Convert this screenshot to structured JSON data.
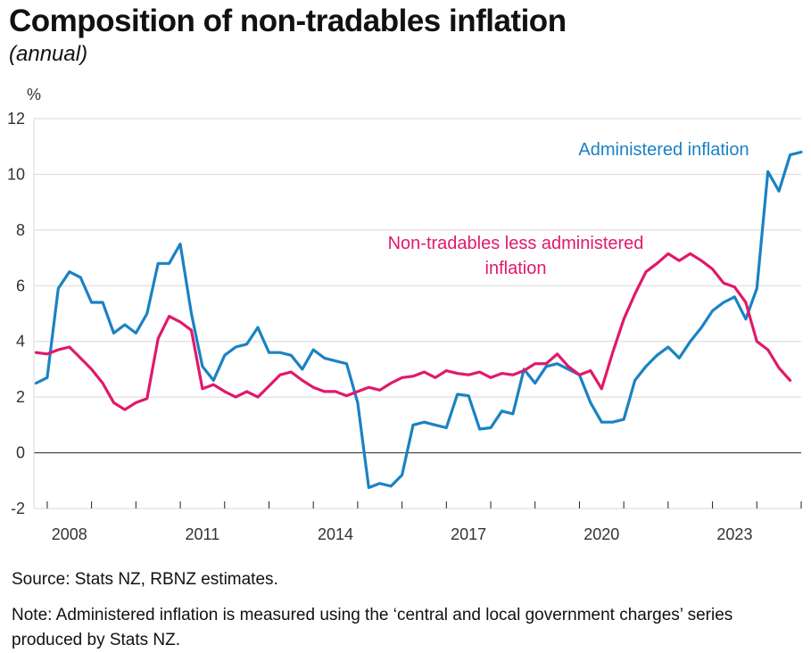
{
  "title": "Composition of non-tradables inflation",
  "subtitle": "(annual)",
  "source": "Source: Stats NZ, RBNZ estimates.",
  "note": "Note: Administered inflation is measured using the ‘central and local government charges’ series produced by Stats NZ.",
  "colors": {
    "administered": "#1a82c4",
    "non_tradables_less_administered": "#e0196b",
    "grid": "#d9d9d9",
    "axis": "#222222"
  },
  "chart_data": {
    "type": "line",
    "ylabel": "%",
    "ylim": [
      -2,
      12
    ],
    "yticks": [
      "-2",
      "0",
      "2",
      "4",
      "6",
      "8",
      "10",
      "12"
    ],
    "xlim": [
      2007.7,
      2025.0
    ],
    "xticks": [
      "2008",
      "2011",
      "2014",
      "2017",
      "2020",
      "2023"
    ],
    "grid": true,
    "series": [
      {
        "name": "Administered inflation",
        "label_lines": [
          "Administered inflation"
        ],
        "x_start": 2007.75,
        "step": 0.25,
        "values": [
          2.5,
          2.7,
          5.9,
          6.5,
          6.3,
          5.4,
          5.4,
          4.3,
          4.6,
          4.3,
          5.0,
          6.8,
          6.8,
          7.5,
          5.0,
          3.1,
          2.6,
          3.5,
          3.8,
          3.9,
          4.5,
          3.6,
          3.6,
          3.5,
          3.0,
          3.7,
          3.4,
          3.3,
          3.2,
          1.8,
          -1.25,
          -1.1,
          -1.2,
          -0.8,
          1.0,
          1.1,
          1.0,
          0.9,
          2.1,
          2.05,
          0.85,
          0.9,
          1.5,
          1.4,
          3.0,
          2.5,
          3.1,
          3.2,
          3.0,
          2.8,
          1.8,
          1.1,
          1.1,
          1.2,
          2.6,
          3.1,
          3.5,
          3.8,
          3.4,
          4.0,
          4.5,
          5.1,
          5.4,
          5.6,
          4.8,
          5.9,
          10.1,
          9.4,
          10.7,
          10.8
        ]
      },
      {
        "name": "Non-tradables less administered inflation",
        "label_lines": [
          "Non-tradables less administered",
          "inflation"
        ],
        "x_start": 2007.75,
        "step": 0.25,
        "values": [
          3.6,
          3.55,
          3.7,
          3.8,
          3.4,
          3.0,
          2.5,
          1.8,
          1.55,
          1.8,
          1.95,
          4.1,
          4.9,
          4.7,
          4.4,
          2.3,
          2.45,
          2.2,
          2.0,
          2.2,
          2.0,
          2.4,
          2.8,
          2.9,
          2.6,
          2.35,
          2.2,
          2.2,
          2.05,
          2.2,
          2.35,
          2.25,
          2.5,
          2.7,
          2.75,
          2.9,
          2.7,
          2.95,
          2.85,
          2.8,
          2.9,
          2.7,
          2.85,
          2.8,
          2.95,
          3.2,
          3.2,
          3.55,
          3.1,
          2.8,
          2.95,
          2.3,
          3.6,
          4.8,
          5.7,
          6.5,
          6.8,
          7.15,
          6.9,
          7.15,
          6.9,
          6.6,
          6.1,
          5.95,
          5.4,
          4.0,
          3.7,
          3.05,
          2.6
        ]
      }
    ]
  }
}
